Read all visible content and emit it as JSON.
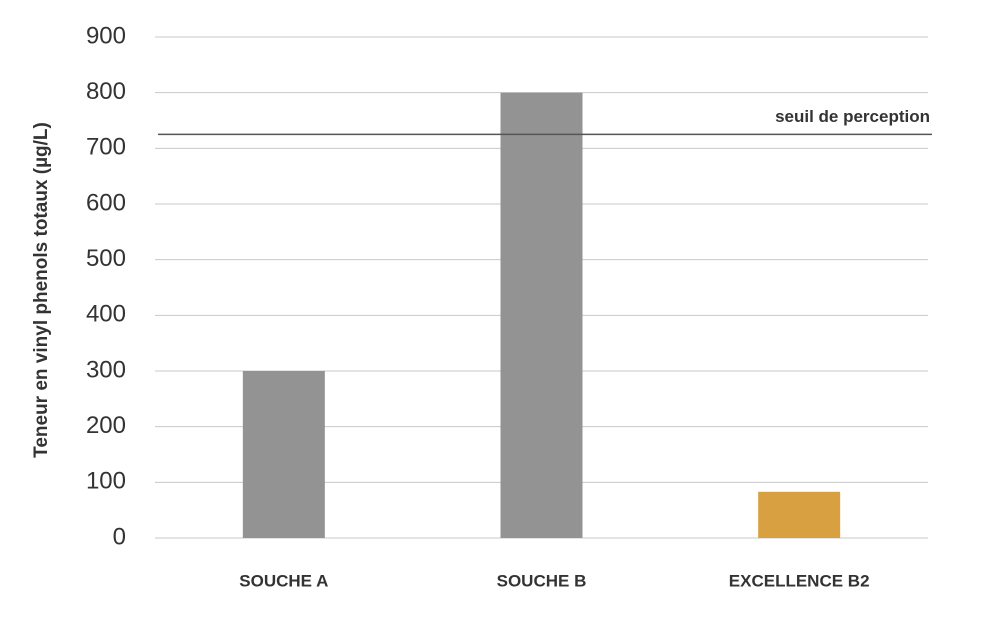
{
  "chart_data": {
    "type": "bar",
    "y_label": "Teneur en vinyl phenols totaux (µg/L)",
    "categories": [
      "SOUCHE A",
      "SOUCHE B",
      "EXCELLENCE B2"
    ],
    "values": [
      300,
      800,
      83
    ],
    "colors": [
      "#939393",
      "#939393",
      "#d9a042"
    ],
    "ylim": [
      0,
      900
    ],
    "yticks": [
      0,
      100,
      200,
      300,
      400,
      500,
      600,
      700,
      800,
      900
    ],
    "grid": true,
    "reference_line": {
      "label": "seuil de perception",
      "value": 725
    }
  }
}
